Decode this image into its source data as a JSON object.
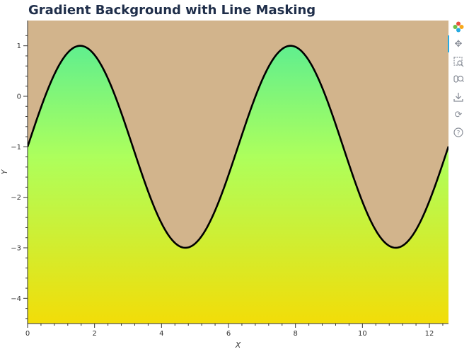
{
  "chart_data": {
    "type": "line",
    "title": "Gradient Background with Line Masking",
    "xlabel": "X",
    "ylabel": "Y",
    "xlim": [
      0,
      12.57
    ],
    "ylim": [
      -4.5,
      1.5
    ],
    "x_ticks": [
      0,
      2,
      4,
      6,
      8,
      10,
      12
    ],
    "y_ticks": [
      1,
      0,
      -1,
      -2,
      -3,
      -4
    ],
    "x_tick_labels": [
      "0",
      "2",
      "4",
      "6",
      "8",
      "10",
      "12"
    ],
    "y_tick_labels": [
      "1",
      "0",
      "−1",
      "−2",
      "−3",
      "−4"
    ],
    "series": [
      {
        "function": "y = 2*sin(x) - 1",
        "x": [
          0,
          0.5,
          1.0,
          1.571,
          2.0,
          2.5,
          3.0,
          3.5,
          4.0,
          4.712,
          5.5,
          6.0,
          6.5,
          7.0,
          7.854,
          8.5,
          9.0,
          9.5,
          10.0,
          10.996,
          11.5,
          12.0,
          12.57
        ],
        "y": [
          -1,
          -0.04,
          0.68,
          1,
          0.82,
          0.2,
          -0.72,
          -1.7,
          -2.51,
          -3,
          -2.41,
          -1.56,
          -0.57,
          0.31,
          1,
          0.6,
          -0.18,
          -1.15,
          -2.09,
          -3,
          -2.74,
          -2.07,
          -1.01
        ]
      }
    ],
    "colors": {
      "above_line_fill": "#d2b48c",
      "gradient_top": "#4eeb9a",
      "gradient_middle": "#adff5c",
      "gradient_bottom": "#f2dd08",
      "line": "#000000"
    },
    "grid": false,
    "legend": "none"
  },
  "toolbar": {
    "tools": [
      "bokeh-logo-icon",
      "pan-icon",
      "box-zoom-icon",
      "wheel-zoom-icon",
      "save-icon",
      "reset-icon",
      "help-icon"
    ]
  }
}
